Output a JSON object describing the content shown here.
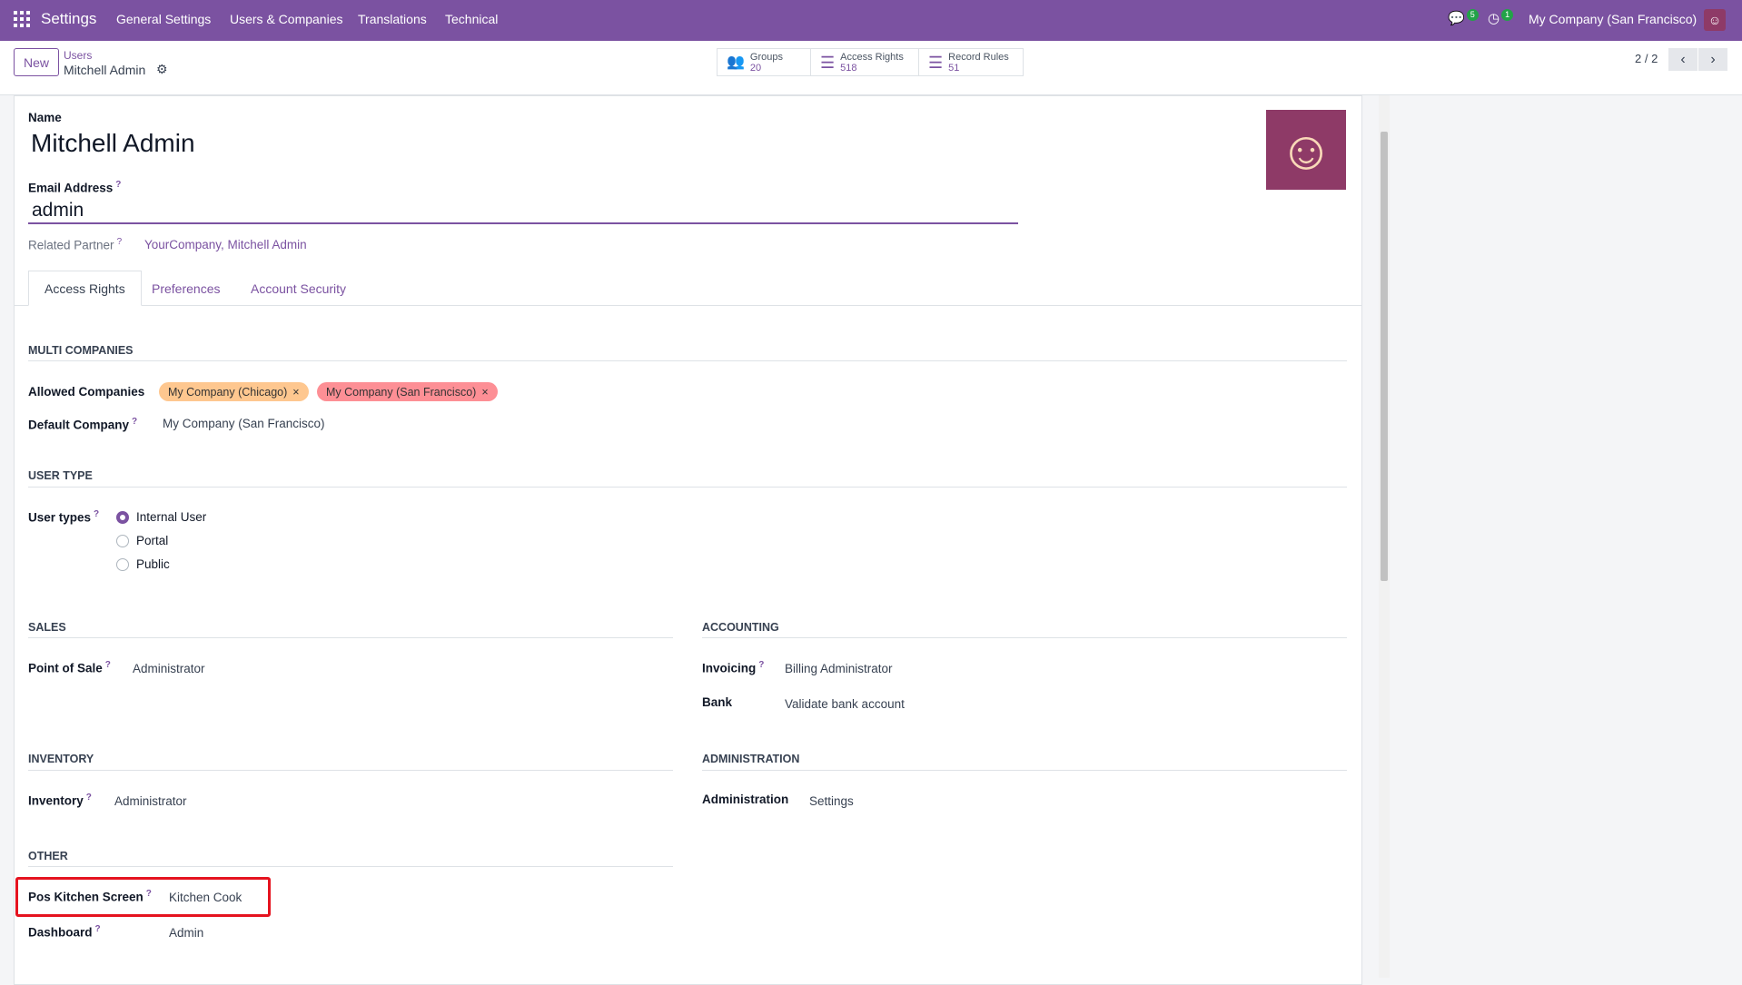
{
  "topbar": {
    "app": "Settings",
    "menu": [
      "General Settings",
      "Users & Companies",
      "Translations",
      "Technical"
    ],
    "messages_badge": "5",
    "activities_badge": "1",
    "company": "My Company (San Francisco)"
  },
  "control": {
    "new_label": "New",
    "breadcrumb_parent": "Users",
    "breadcrumb_current": "Mitchell Admin",
    "stats": [
      {
        "label": "Groups",
        "value": "20",
        "icon": "users-icon"
      },
      {
        "label": "Access Rights",
        "value": "518",
        "icon": "list-icon"
      },
      {
        "label": "Record Rules",
        "value": "51",
        "icon": "list-icon"
      }
    ],
    "pager": "2 / 2"
  },
  "form": {
    "name_label": "Name",
    "name": "Mitchell Admin",
    "email_label": "Email Address",
    "email": "admin",
    "partner_label": "Related Partner",
    "partner": "YourCompany, Mitchell Admin",
    "tabs": [
      "Access Rights",
      "Preferences",
      "Account Security"
    ],
    "multi": {
      "title": "MULTI COMPANIES",
      "allowed_label": "Allowed Companies",
      "tags": [
        {
          "label": "My Company (Chicago)",
          "color": "#fec78f"
        },
        {
          "label": "My Company (San Francisco)",
          "color": "#fd8f95"
        }
      ],
      "default_label": "Default Company",
      "default": "My Company (San Francisco)"
    },
    "usertype": {
      "title": "USER TYPE",
      "label": "User types",
      "options": [
        "Internal User",
        "Portal",
        "Public"
      ],
      "selected": "Internal User"
    },
    "sales": {
      "title": "SALES",
      "label": "Point of Sale",
      "value": "Administrator"
    },
    "accounting": {
      "title": "ACCOUNTING",
      "invoicing_label": "Invoicing",
      "invoicing": "Billing Administrator",
      "bank_label": "Bank",
      "bank": "Validate bank account"
    },
    "inventory": {
      "title": "INVENTORY",
      "label": "Inventory",
      "value": "Administrator"
    },
    "administration": {
      "title": "ADMINISTRATION",
      "label": "Administration",
      "value": "Settings"
    },
    "other": {
      "title": "OTHER",
      "pos_label": "Pos Kitchen Screen",
      "pos": "Kitchen Cook",
      "dash_label": "Dashboard",
      "dash": "Admin"
    }
  },
  "colors": {
    "brand": "#7b52a1",
    "highlight": "#e5131f"
  }
}
